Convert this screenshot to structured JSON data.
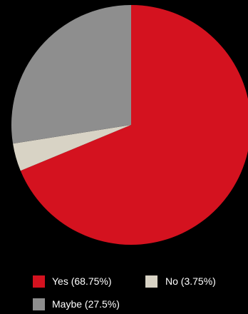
{
  "chart_data": {
    "type": "pie",
    "slices": [
      {
        "label": "Yes",
        "legend_text": "Yes (68.75%)",
        "value": 68.75,
        "color": "#d4121f"
      },
      {
        "label": "No",
        "legend_text": "No (3.75%)",
        "value": 3.75,
        "color": "#d8d3c5"
      },
      {
        "label": "Maybe",
        "legend_text": "Maybe (27.5%)",
        "value": 27.5,
        "color": "#8e8e8e"
      }
    ],
    "start_angle": "12 o'clock",
    "direction": "clockwise",
    "legend_placement": "bottom",
    "background": "#000000"
  }
}
